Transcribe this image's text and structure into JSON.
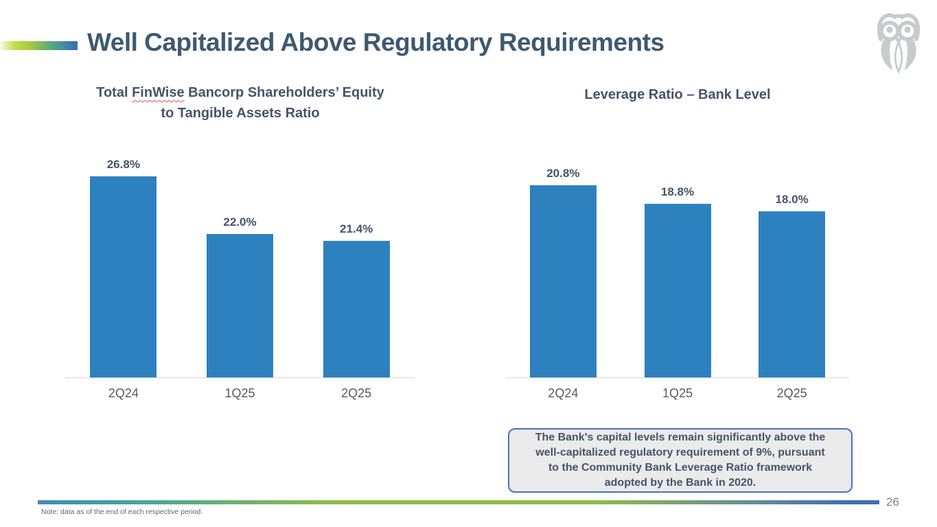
{
  "slide": {
    "title": "Well Capitalized Above Regulatory Requirements",
    "page_number": "26",
    "footnote": "Note: data as of the end of each respective period.",
    "logo": "finwise-owl-logo",
    "colors": {
      "bar_blue": "#2E81BF",
      "title_navy": "#3E5971",
      "chart_text": "#44546A",
      "category_text": "#595959",
      "callout_border": "#4472C4",
      "callout_fill": "#EBEBEB"
    }
  },
  "chart_data": [
    {
      "type": "bar",
      "title": "Total FinWise Bancorp Shareholders’ Equity to Tangible Assets Ratio",
      "title_parts": {
        "pre": "Total ",
        "brand": "FinWise",
        "post": " Bancorp Shareholders’ Equity"
      },
      "title_line2": "to Tangible Assets Ratio",
      "categories": [
        "2Q24",
        "1Q25",
        "2Q25"
      ],
      "values": [
        26.8,
        22.0,
        21.4
      ],
      "labels": [
        "26.8%",
        "22.0%",
        "21.4%"
      ],
      "ylim": [
        10,
        28
      ],
      "grid": false,
      "legend": "none",
      "bar_color": "#2E81BF"
    },
    {
      "type": "bar",
      "title": "Leverage Ratio – Bank Level",
      "categories": [
        "2Q24",
        "1Q25",
        "2Q25"
      ],
      "values": [
        20.8,
        18.8,
        18.0
      ],
      "labels": [
        "20.8%",
        "18.8%",
        "18.0%"
      ],
      "ylim": [
        0,
        22
      ],
      "grid": false,
      "legend": "none",
      "bar_color": "#2E81BF"
    }
  ],
  "callout": {
    "lines": [
      "The Bank's capital levels remain significantly above the",
      "well-capitalized regulatory requirement of 9%, pursuant",
      "to the Community Bank Leverage Ratio framework",
      "adopted by the Bank in 2020."
    ]
  }
}
